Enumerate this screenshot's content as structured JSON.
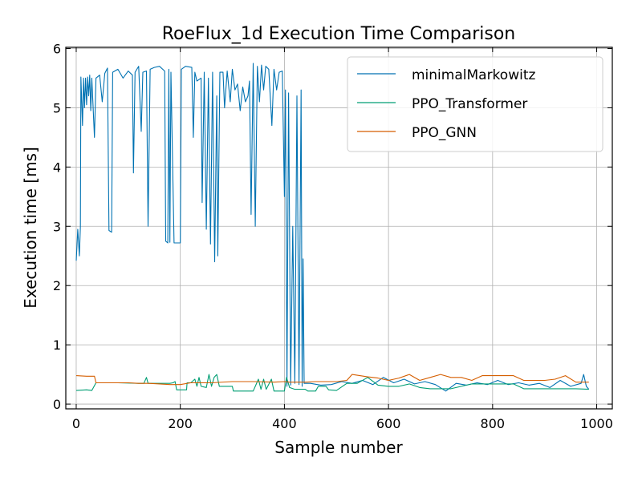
{
  "chart_data": {
    "type": "line",
    "title": "RoeFlux_1d Execution Time Comparison",
    "xlabel": "Sample number",
    "ylabel": "Execution time [ms]",
    "xlim": [
      -20,
      1030
    ],
    "ylim": [
      -0.08,
      6.02
    ],
    "grid": true,
    "legend_position": "top-right",
    "x_ticks": [
      0,
      200,
      400,
      600,
      800,
      1000
    ],
    "y_ticks": [
      0,
      1,
      2,
      3,
      4,
      5,
      6
    ],
    "series": [
      {
        "name": "minimalMarkowitz",
        "color": "#0072b2",
        "points": [
          [
            0,
            2.42
          ],
          [
            3,
            2.95
          ],
          [
            6,
            2.5
          ],
          [
            8,
            3.0
          ],
          [
            9,
            5.52
          ],
          [
            12,
            4.7
          ],
          [
            14,
            5.5
          ],
          [
            16,
            5.0
          ],
          [
            18,
            5.5
          ],
          [
            20,
            5.05
          ],
          [
            22,
            5.52
          ],
          [
            24,
            5.2
          ],
          [
            26,
            5.55
          ],
          [
            28,
            4.95
          ],
          [
            30,
            5.5
          ],
          [
            35,
            4.5
          ],
          [
            38,
            5.5
          ],
          [
            45,
            5.55
          ],
          [
            50,
            5.1
          ],
          [
            55,
            5.58
          ],
          [
            60,
            5.67
          ],
          [
            63,
            2.93
          ],
          [
            68,
            2.9
          ],
          [
            70,
            5.6
          ],
          [
            80,
            5.65
          ],
          [
            90,
            5.5
          ],
          [
            100,
            5.62
          ],
          [
            108,
            5.55
          ],
          [
            110,
            3.9
          ],
          [
            113,
            5.6
          ],
          [
            120,
            5.7
          ],
          [
            125,
            4.6
          ],
          [
            128,
            5.6
          ],
          [
            135,
            5.62
          ],
          [
            138,
            3.0
          ],
          [
            142,
            5.65
          ],
          [
            150,
            5.68
          ],
          [
            160,
            5.7
          ],
          [
            170,
            5.62
          ],
          [
            172,
            2.75
          ],
          [
            176,
            2.72
          ],
          [
            178,
            5.65
          ],
          [
            180,
            2.73
          ],
          [
            182,
            5.6
          ],
          [
            188,
            2.72
          ],
          [
            200,
            2.72
          ],
          [
            202,
            5.65
          ],
          [
            210,
            5.7
          ],
          [
            222,
            5.68
          ],
          [
            225,
            4.5
          ],
          [
            228,
            5.6
          ],
          [
            232,
            5.45
          ],
          [
            240,
            5.5
          ],
          [
            242,
            3.4
          ],
          [
            246,
            5.6
          ],
          [
            250,
            2.95
          ],
          [
            254,
            5.5
          ],
          [
            258,
            2.7
          ],
          [
            262,
            5.6
          ],
          [
            266,
            2.4
          ],
          [
            270,
            5.2
          ],
          [
            272,
            2.5
          ],
          [
            276,
            5.6
          ],
          [
            282,
            5.6
          ],
          [
            285,
            5.0
          ],
          [
            290,
            5.62
          ],
          [
            296,
            5.1
          ],
          [
            300,
            5.65
          ],
          [
            305,
            5.3
          ],
          [
            310,
            5.4
          ],
          [
            315,
            4.95
          ],
          [
            320,
            5.35
          ],
          [
            325,
            5.1
          ],
          [
            330,
            5.2
          ],
          [
            333,
            5.45
          ],
          [
            336,
            3.2
          ],
          [
            340,
            5.75
          ],
          [
            344,
            3.0
          ],
          [
            348,
            5.7
          ],
          [
            352,
            5.1
          ],
          [
            356,
            5.72
          ],
          [
            360,
            5.3
          ],
          [
            364,
            5.7
          ],
          [
            370,
            5.65
          ],
          [
            376,
            4.7
          ],
          [
            380,
            5.65
          ],
          [
            385,
            5.3
          ],
          [
            390,
            5.6
          ],
          [
            396,
            5.62
          ],
          [
            400,
            3.5
          ],
          [
            402,
            5.3
          ],
          [
            405,
            0.3
          ],
          [
            408,
            5.25
          ],
          [
            412,
            0.32
          ],
          [
            416,
            3.0
          ],
          [
            420,
            0.35
          ],
          [
            424,
            5.2
          ],
          [
            428,
            0.33
          ],
          [
            432,
            5.3
          ],
          [
            434,
            0.3
          ],
          [
            436,
            2.45
          ],
          [
            438,
            0.35
          ],
          [
            450,
            0.35
          ],
          [
            470,
            0.32
          ],
          [
            490,
            0.33
          ],
          [
            510,
            0.38
          ],
          [
            530,
            0.35
          ],
          [
            550,
            0.4
          ],
          [
            570,
            0.33
          ],
          [
            590,
            0.45
          ],
          [
            610,
            0.36
          ],
          [
            630,
            0.42
          ],
          [
            650,
            0.34
          ],
          [
            670,
            0.38
          ],
          [
            690,
            0.33
          ],
          [
            710,
            0.22
          ],
          [
            730,
            0.35
          ],
          [
            750,
            0.32
          ],
          [
            770,
            0.36
          ],
          [
            790,
            0.33
          ],
          [
            810,
            0.4
          ],
          [
            830,
            0.33
          ],
          [
            850,
            0.36
          ],
          [
            870,
            0.32
          ],
          [
            890,
            0.35
          ],
          [
            910,
            0.28
          ],
          [
            930,
            0.4
          ],
          [
            950,
            0.3
          ],
          [
            970,
            0.35
          ],
          [
            975,
            0.5
          ],
          [
            980,
            0.3
          ],
          [
            985,
            0.25
          ]
        ]
      },
      {
        "name": "PPO_Transformer",
        "color": "#009e73",
        "points": [
          [
            0,
            0.23
          ],
          [
            20,
            0.24
          ],
          [
            30,
            0.23
          ],
          [
            38,
            0.36
          ],
          [
            80,
            0.36
          ],
          [
            120,
            0.35
          ],
          [
            130,
            0.35
          ],
          [
            135,
            0.45
          ],
          [
            138,
            0.35
          ],
          [
            180,
            0.35
          ],
          [
            186,
            0.36
          ],
          [
            190,
            0.38
          ],
          [
            193,
            0.24
          ],
          [
            212,
            0.24
          ],
          [
            213,
            0.36
          ],
          [
            220,
            0.36
          ],
          [
            228,
            0.42
          ],
          [
            232,
            0.3
          ],
          [
            236,
            0.45
          ],
          [
            240,
            0.3
          ],
          [
            250,
            0.28
          ],
          [
            255,
            0.5
          ],
          [
            260,
            0.3
          ],
          [
            265,
            0.45
          ],
          [
            270,
            0.5
          ],
          [
            275,
            0.3
          ],
          [
            280,
            0.3
          ],
          [
            300,
            0.3
          ],
          [
            302,
            0.22
          ],
          [
            340,
            0.22
          ],
          [
            350,
            0.42
          ],
          [
            355,
            0.25
          ],
          [
            360,
            0.42
          ],
          [
            365,
            0.25
          ],
          [
            375,
            0.42
          ],
          [
            380,
            0.22
          ],
          [
            400,
            0.22
          ],
          [
            404,
            0.45
          ],
          [
            410,
            0.28
          ],
          [
            420,
            0.25
          ],
          [
            440,
            0.25
          ],
          [
            445,
            0.22
          ],
          [
            460,
            0.22
          ],
          [
            465,
            0.3
          ],
          [
            480,
            0.3
          ],
          [
            485,
            0.24
          ],
          [
            500,
            0.23
          ],
          [
            520,
            0.35
          ],
          [
            540,
            0.35
          ],
          [
            560,
            0.45
          ],
          [
            580,
            0.32
          ],
          [
            600,
            0.3
          ],
          [
            620,
            0.3
          ],
          [
            640,
            0.34
          ],
          [
            660,
            0.28
          ],
          [
            680,
            0.26
          ],
          [
            700,
            0.26
          ],
          [
            720,
            0.26
          ],
          [
            740,
            0.3
          ],
          [
            760,
            0.34
          ],
          [
            780,
            0.34
          ],
          [
            800,
            0.34
          ],
          [
            820,
            0.34
          ],
          [
            840,
            0.34
          ],
          [
            860,
            0.26
          ],
          [
            880,
            0.26
          ],
          [
            900,
            0.26
          ],
          [
            920,
            0.26
          ],
          [
            940,
            0.26
          ],
          [
            960,
            0.26
          ],
          [
            985,
            0.25
          ]
        ]
      },
      {
        "name": "PPO_GNN",
        "color": "#d55e00",
        "points": [
          [
            0,
            0.48
          ],
          [
            20,
            0.47
          ],
          [
            35,
            0.47
          ],
          [
            38,
            0.36
          ],
          [
            100,
            0.36
          ],
          [
            120,
            0.35
          ],
          [
            140,
            0.35
          ],
          [
            180,
            0.33
          ],
          [
            200,
            0.33
          ],
          [
            220,
            0.36
          ],
          [
            260,
            0.36
          ],
          [
            300,
            0.38
          ],
          [
            340,
            0.38
          ],
          [
            380,
            0.37
          ],
          [
            400,
            0.38
          ],
          [
            410,
            0.37
          ],
          [
            440,
            0.37
          ],
          [
            460,
            0.38
          ],
          [
            480,
            0.38
          ],
          [
            500,
            0.38
          ],
          [
            520,
            0.4
          ],
          [
            530,
            0.5
          ],
          [
            560,
            0.46
          ],
          [
            580,
            0.44
          ],
          [
            600,
            0.4
          ],
          [
            620,
            0.44
          ],
          [
            640,
            0.5
          ],
          [
            660,
            0.4
          ],
          [
            680,
            0.45
          ],
          [
            700,
            0.5
          ],
          [
            720,
            0.45
          ],
          [
            740,
            0.45
          ],
          [
            760,
            0.4
          ],
          [
            780,
            0.48
          ],
          [
            800,
            0.48
          ],
          [
            820,
            0.48
          ],
          [
            840,
            0.48
          ],
          [
            860,
            0.4
          ],
          [
            880,
            0.4
          ],
          [
            900,
            0.4
          ],
          [
            920,
            0.42
          ],
          [
            940,
            0.48
          ],
          [
            960,
            0.37
          ],
          [
            985,
            0.37
          ]
        ]
      }
    ]
  }
}
